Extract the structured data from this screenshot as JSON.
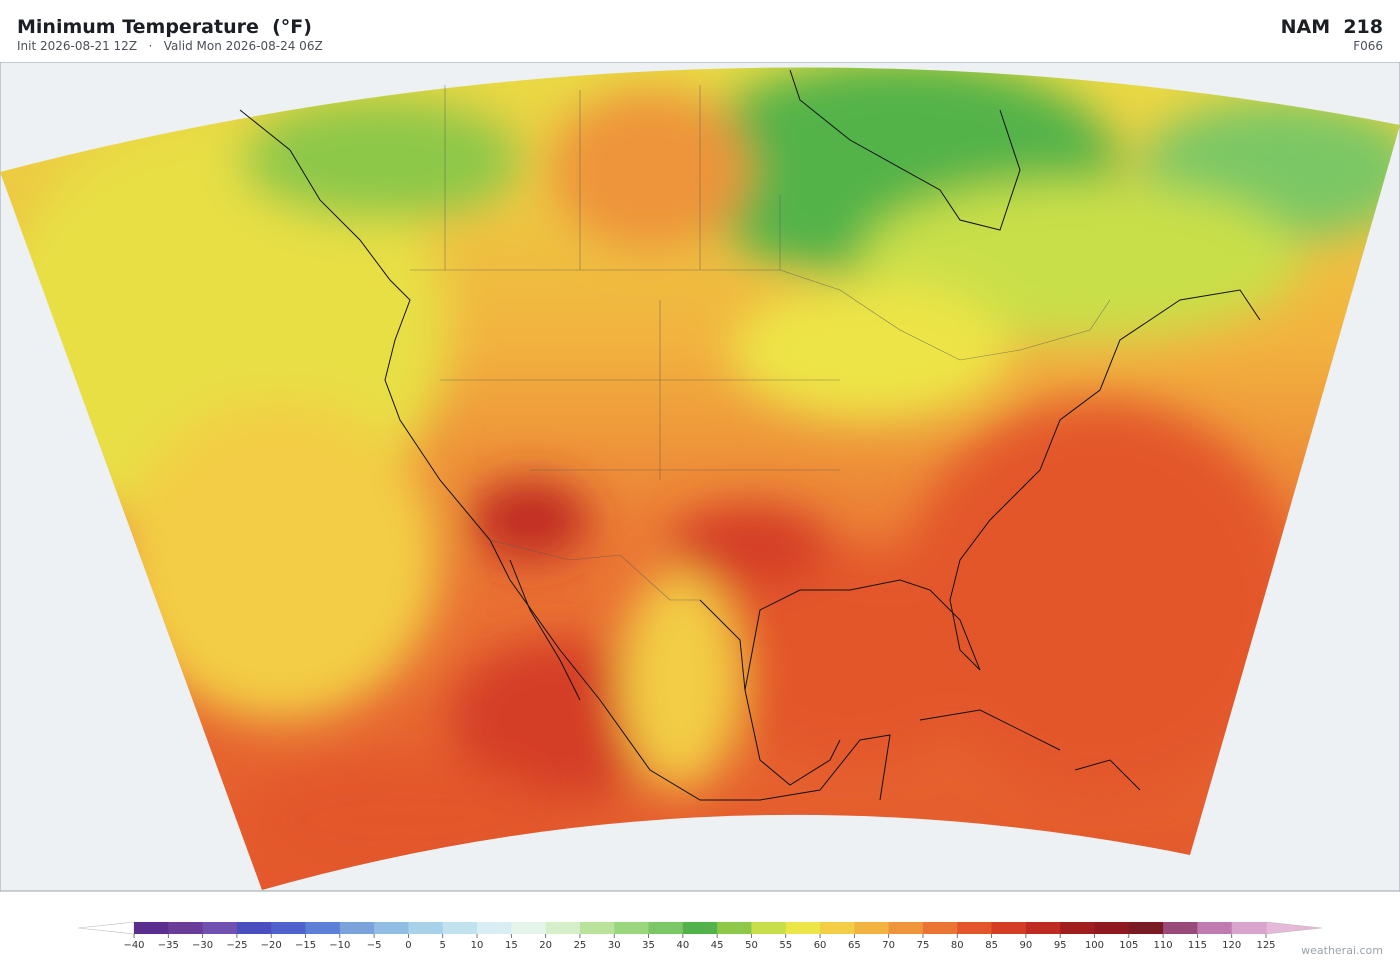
{
  "header": {
    "title": "Minimum Temperature  (°F)",
    "init": "Init 2026-08-21 12Z",
    "separator": "·",
    "valid": "Valid Mon 2026-08-24 06Z",
    "model": "NAM  218",
    "forecast_hour": "F066"
  },
  "colorbar": {
    "ticks": [
      {
        "value": -40,
        "label": "−40"
      },
      {
        "value": -35,
        "label": "−35"
      },
      {
        "value": -30,
        "label": "−30"
      },
      {
        "value": -25,
        "label": "−25"
      },
      {
        "value": -20,
        "label": "−20"
      },
      {
        "value": -15,
        "label": "−15"
      },
      {
        "value": -10,
        "label": "−10"
      },
      {
        "value": -5,
        "label": "−5"
      },
      0,
      5,
      10,
      15,
      20,
      25,
      30,
      35,
      40,
      45,
      50,
      55,
      60,
      65,
      70,
      75,
      80,
      85,
      90,
      95,
      100,
      105,
      110,
      115,
      120,
      125
    ],
    "colors": [
      "#5b2d8e",
      "#6a3d9a",
      "#7050b0",
      "#4a4fc0",
      "#4e62cc",
      "#5b80d6",
      "#7aa3dc",
      "#8fbde3",
      "#a8d2ea",
      "#c3e2f0",
      "#d8eef3",
      "#e6f5ea",
      "#d6efc9",
      "#b9e29a",
      "#9ad67c",
      "#7cc765",
      "#52b34a",
      "#8dc84a",
      "#c9df4a",
      "#ede447",
      "#f3cd45",
      "#f2b23f",
      "#ee943a",
      "#ea7434",
      "#e3562c",
      "#d43e26",
      "#bf2b22",
      "#a01d1d",
      "#8e1a1f",
      "#7a1a22",
      "#9a4a7a",
      "#c07ab0",
      "#d8a3cc"
    ],
    "extend_colors": [
      "#ffffff",
      "#e6b8da"
    ]
  },
  "watermark": "weatherai.com"
}
